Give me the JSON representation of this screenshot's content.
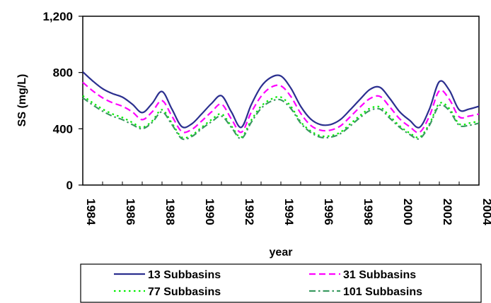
{
  "chart_data": {
    "type": "line",
    "xlabel": "year",
    "ylabel": "SS (mg/L)",
    "xlim": [
      1984,
      2004
    ],
    "ylim": [
      0,
      1200
    ],
    "yticks": [
      0,
      400,
      800,
      1200
    ],
    "ytick_labels": [
      "0",
      "400",
      "800",
      "1,200"
    ],
    "xticks": [
      1984,
      1986,
      1988,
      1990,
      1992,
      1994,
      1996,
      1998,
      2000,
      2002,
      2004
    ],
    "xtick_labels": [
      "1984",
      "1986",
      "1988",
      "1990",
      "1992",
      "1994",
      "1996",
      "1998",
      "2000",
      "2002",
      "2004"
    ],
    "grid": false,
    "legend_position": "bottom",
    "x": [
      1984,
      1984.5,
      1985,
      1985.5,
      1986,
      1986.5,
      1987,
      1987.5,
      1988,
      1988.5,
      1989,
      1989.5,
      1990,
      1990.5,
      1991,
      1991.5,
      1992,
      1992.5,
      1993,
      1993.5,
      1994,
      1994.5,
      1995,
      1995.5,
      1996,
      1996.5,
      1997,
      1997.5,
      1998,
      1998.5,
      1999,
      1999.5,
      2000,
      2000.5,
      2001,
      2001.5,
      2002,
      2002.5,
      2003,
      2003.5,
      2004
    ],
    "series": [
      {
        "name": "13 Subbasins",
        "color": "#2b2f8f",
        "dash": "solid",
        "values": [
          805,
          740,
          685,
          650,
          625,
          575,
          515,
          580,
          665,
          540,
          415,
          435,
          505,
          580,
          635,
          520,
          410,
          570,
          700,
          765,
          775,
          690,
          560,
          470,
          430,
          430,
          465,
          535,
          610,
          680,
          695,
          615,
          520,
          460,
          410,
          540,
          735,
          675,
          535,
          540,
          560
        ]
      },
      {
        "name": "31 Subbasins",
        "color": "#ff00ff",
        "dash": "dashed",
        "values": [
          730,
          670,
          620,
          585,
          560,
          520,
          465,
          520,
          600,
          490,
          380,
          395,
          455,
          520,
          575,
          470,
          375,
          515,
          630,
          695,
          705,
          630,
          510,
          425,
          390,
          390,
          420,
          485,
          555,
          615,
          630,
          555,
          470,
          415,
          375,
          490,
          670,
          610,
          485,
          490,
          505
        ]
      },
      {
        "name": "77 Subbasins",
        "color": "#00ee00",
        "dash": "dotted",
        "values": [
          635,
          585,
          540,
          505,
          480,
          445,
          410,
          455,
          535,
          440,
          340,
          355,
          410,
          465,
          505,
          420,
          340,
          460,
          560,
          610,
          625,
          560,
          450,
          385,
          350,
          350,
          375,
          435,
          495,
          545,
          555,
          490,
          420,
          370,
          340,
          435,
          580,
          545,
          435,
          440,
          455
        ]
      },
      {
        "name": "101 Subbasins",
        "color": "#3a9a60",
        "dash": "dashdot",
        "values": [
          620,
          570,
          525,
          490,
          465,
          430,
          400,
          445,
          520,
          430,
          330,
          345,
          400,
          450,
          490,
          410,
          330,
          445,
          545,
          595,
          605,
          545,
          440,
          375,
          340,
          340,
          365,
          420,
          480,
          530,
          540,
          475,
          410,
          360,
          330,
          425,
          565,
          530,
          425,
          425,
          440
        ]
      }
    ]
  }
}
